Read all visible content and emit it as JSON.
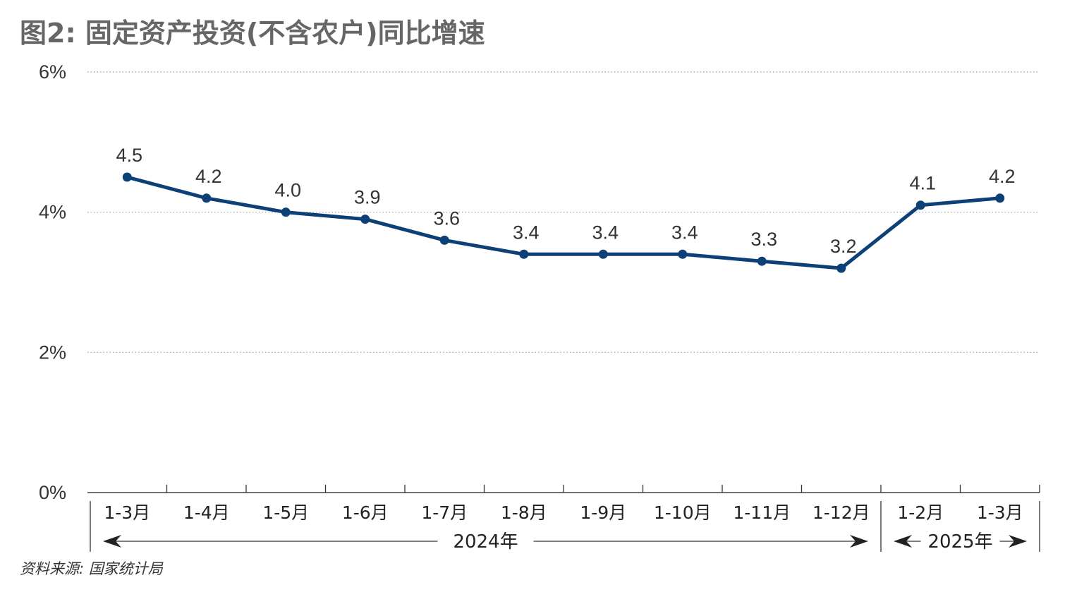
{
  "title": "图2: 固定资产投资(不含农户)同比增速",
  "source": "资料来源: 国家统计局",
  "colors": {
    "series": "#0c4076",
    "title": "#666666",
    "grid": "#9a9a9a"
  },
  "chart_data": {
    "type": "line",
    "title": "图2: 固定资产投资(不含农户)同比增速",
    "categories": [
      "1-3月",
      "1-4月",
      "1-5月",
      "1-6月",
      "1-7月",
      "1-8月",
      "1-9月",
      "1-10月",
      "1-11月",
      "1-12月",
      "1-2月",
      "1-3月"
    ],
    "values": [
      4.5,
      4.2,
      4.0,
      3.9,
      3.6,
      3.4,
      3.4,
      3.4,
      3.3,
      3.2,
      4.1,
      4.2
    ],
    "data_labels": [
      "4.5",
      "4.2",
      "4.0",
      "3.9",
      "3.6",
      "3.4",
      "3.4",
      "3.4",
      "3.3",
      "3.2",
      "4.1",
      "4.2"
    ],
    "ylim": [
      0,
      6
    ],
    "yticks": [
      0,
      2,
      4,
      6
    ],
    "ytick_labels": [
      "0%",
      "2%",
      "4%",
      "6%"
    ],
    "groups": [
      {
        "label": "2024年",
        "count": 10
      },
      {
        "label": "2025年",
        "count": 2
      }
    ],
    "grid": true,
    "legend": "none"
  }
}
